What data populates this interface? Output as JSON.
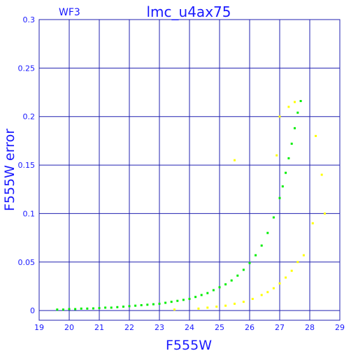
{
  "chart_data": {
    "type": "scatter",
    "title": "lmc_u4ax75",
    "subtitle": "WF3",
    "xlabel": "F555W",
    "ylabel": "F555W error",
    "xlim": [
      19,
      29
    ],
    "ylim": [
      -0.01,
      0.3
    ],
    "xticks": [
      "19",
      "20",
      "21",
      "22",
      "23",
      "24",
      "25",
      "26",
      "27",
      "28",
      "29"
    ],
    "yticks": [
      "0",
      "0.05",
      "0.1",
      "0.15",
      "0.2",
      "0.25",
      "0.3"
    ],
    "grid": true,
    "series": [
      {
        "color": "#00ee00",
        "points": [
          [
            19.6,
            0.001
          ],
          [
            19.8,
            0.001
          ],
          [
            20.0,
            0.0015
          ],
          [
            20.2,
            0.0015
          ],
          [
            20.4,
            0.002
          ],
          [
            20.6,
            0.002
          ],
          [
            20.8,
            0.0022
          ],
          [
            21.0,
            0.0025
          ],
          [
            21.2,
            0.003
          ],
          [
            21.4,
            0.003
          ],
          [
            21.6,
            0.0035
          ],
          [
            21.8,
            0.004
          ],
          [
            22.0,
            0.0045
          ],
          [
            22.2,
            0.005
          ],
          [
            22.4,
            0.0055
          ],
          [
            22.6,
            0.006
          ],
          [
            22.8,
            0.0065
          ],
          [
            23.0,
            0.007
          ],
          [
            23.2,
            0.008
          ],
          [
            23.4,
            0.009
          ],
          [
            23.6,
            0.01
          ],
          [
            23.8,
            0.011
          ],
          [
            24.0,
            0.012
          ],
          [
            24.2,
            0.014
          ],
          [
            24.4,
            0.016
          ],
          [
            24.6,
            0.018
          ],
          [
            24.8,
            0.021
          ],
          [
            25.0,
            0.024
          ],
          [
            25.2,
            0.027
          ],
          [
            25.4,
            0.031
          ],
          [
            25.6,
            0.036
          ],
          [
            25.8,
            0.042
          ],
          [
            26.0,
            0.049
          ],
          [
            26.2,
            0.057
          ],
          [
            26.4,
            0.067
          ],
          [
            26.6,
            0.08
          ],
          [
            26.8,
            0.096
          ],
          [
            27.0,
            0.116
          ],
          [
            27.1,
            0.128
          ],
          [
            27.2,
            0.142
          ],
          [
            27.3,
            0.157
          ],
          [
            27.4,
            0.172
          ],
          [
            27.5,
            0.188
          ],
          [
            27.6,
            0.204
          ],
          [
            27.7,
            0.216
          ]
        ]
      },
      {
        "color": "#ffff00",
        "points": [
          [
            23.5,
            0.001
          ],
          [
            24.3,
            0.002
          ],
          [
            24.6,
            0.003
          ],
          [
            24.9,
            0.004
          ],
          [
            25.2,
            0.005
          ],
          [
            25.5,
            0.007
          ],
          [
            25.8,
            0.009
          ],
          [
            26.1,
            0.012
          ],
          [
            26.4,
            0.016
          ],
          [
            26.6,
            0.019
          ],
          [
            26.8,
            0.023
          ],
          [
            27.0,
            0.028
          ],
          [
            27.2,
            0.034
          ],
          [
            27.4,
            0.041
          ],
          [
            27.6,
            0.05
          ],
          [
            27.8,
            0.057
          ],
          [
            27.0,
            0.2
          ],
          [
            27.3,
            0.21
          ],
          [
            27.5,
            0.215
          ],
          [
            28.2,
            0.18
          ],
          [
            28.4,
            0.14
          ],
          [
            28.5,
            0.1
          ],
          [
            28.1,
            0.09
          ],
          [
            26.9,
            0.16
          ],
          [
            25.5,
            0.155
          ]
        ]
      }
    ]
  }
}
